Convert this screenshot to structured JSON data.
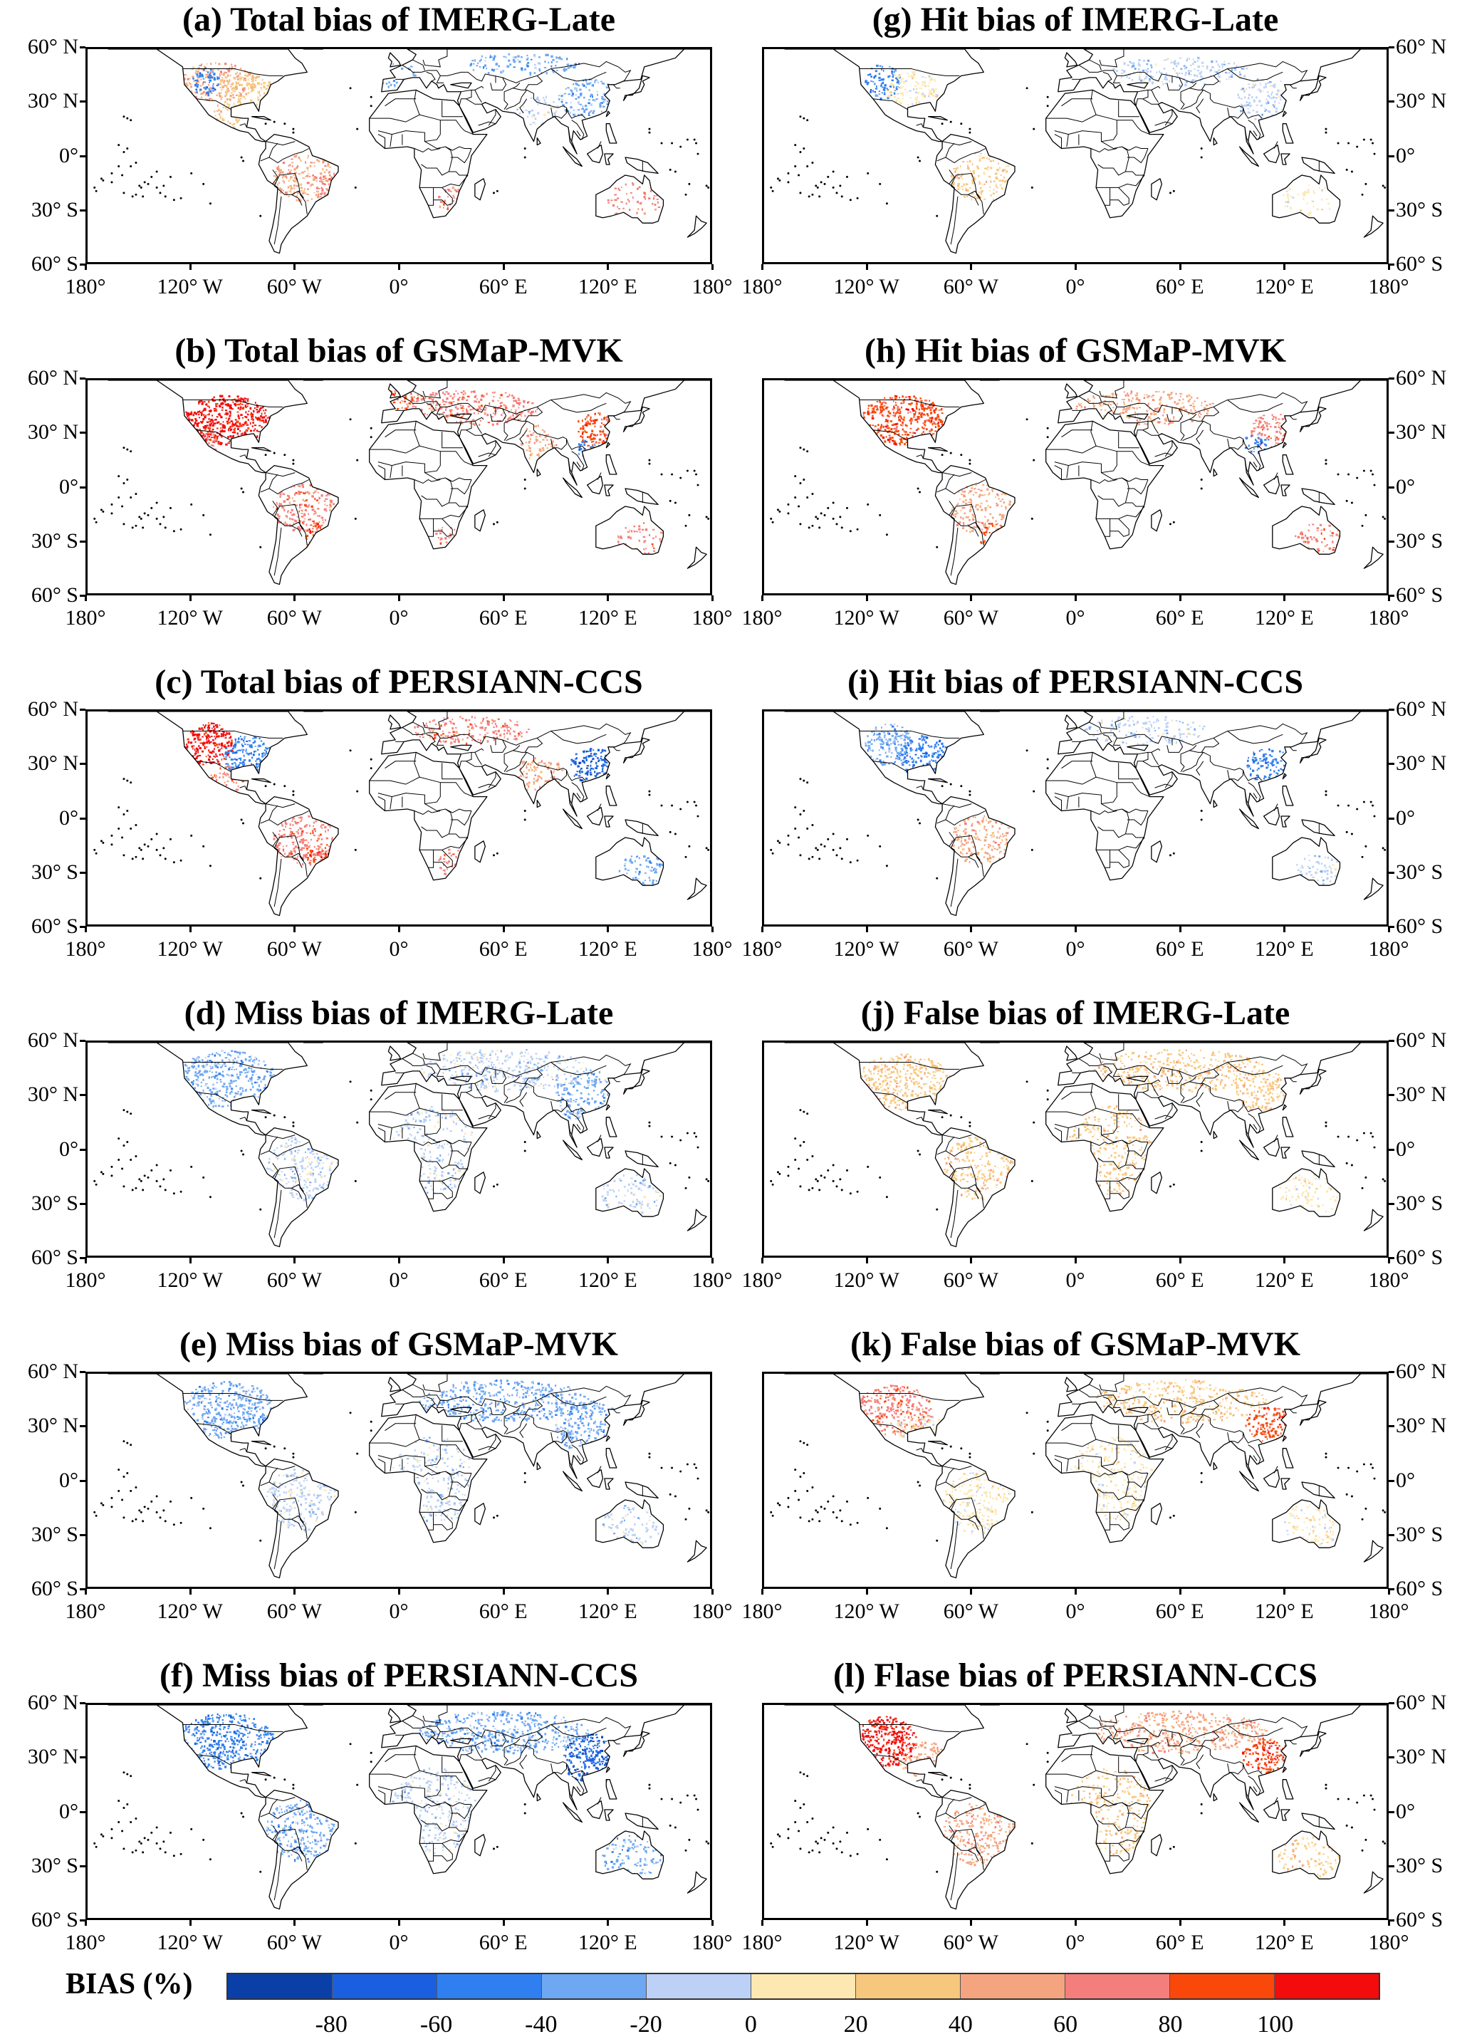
{
  "panels": [
    {
      "id": "a",
      "title": "(a) Total bias of IMERG-Late",
      "side": "left",
      "row": 0,
      "kind": "total",
      "product": "IMERG-Late"
    },
    {
      "id": "b",
      "title": "(b) Total bias of GSMaP-MVK",
      "side": "left",
      "row": 1,
      "kind": "total",
      "product": "GSMaP-MVK"
    },
    {
      "id": "c",
      "title": "(c) Total bias of PERSIANN-CCS",
      "side": "left",
      "row": 2,
      "kind": "total",
      "product": "PERSIANN-CCS"
    },
    {
      "id": "d",
      "title": "(d) Miss bias of IMERG-Late",
      "side": "left",
      "row": 3,
      "kind": "miss",
      "product": "IMERG-Late"
    },
    {
      "id": "e",
      "title": "(e) Miss bias of GSMaP-MVK",
      "side": "left",
      "row": 4,
      "kind": "miss",
      "product": "GSMaP-MVK"
    },
    {
      "id": "f",
      "title": "(f) Miss bias of PERSIANN-CCS",
      "side": "left",
      "row": 5,
      "kind": "miss",
      "product": "PERSIANN-CCS"
    },
    {
      "id": "g",
      "title": "(g) Hit bias of IMERG-Late",
      "side": "right",
      "row": 0,
      "kind": "hit",
      "product": "IMERG-Late"
    },
    {
      "id": "h",
      "title": "(h) Hit bias of GSMaP-MVK",
      "side": "right",
      "row": 1,
      "kind": "hit",
      "product": "GSMaP-MVK"
    },
    {
      "id": "i",
      "title": "(i) Hit bias of PERSIANN-CCS",
      "side": "right",
      "row": 2,
      "kind": "hit",
      "product": "PERSIANN-CCS"
    },
    {
      "id": "j",
      "title": "(j) False bias of IMERG-Late",
      "side": "right",
      "row": 3,
      "kind": "false",
      "product": "IMERG-Late"
    },
    {
      "id": "k",
      "title": "(k) False bias of GSMaP-MVK",
      "side": "right",
      "row": 4,
      "kind": "false",
      "product": "GSMaP-MVK"
    },
    {
      "id": "l",
      "title": "(l) Flase bias of PERSIANN-CCS",
      "side": "right",
      "row": 5,
      "kind": "false",
      "product": "PERSIANN-CCS"
    }
  ],
  "lat_labels": [
    "60° N",
    "30° N",
    "0°",
    "30° S",
    "60° S"
  ],
  "lon_labels": [
    "180°",
    "120° W",
    "60° W",
    "0°",
    "60° E",
    "120° E",
    "180°"
  ],
  "colorbar": {
    "title": "BIAS (%)",
    "colors": [
      "#0a3fa8",
      "#1a5fe0",
      "#2f7ff0",
      "#6fa8f2",
      "#bcd1f5",
      "#fde8b2",
      "#f8c77e",
      "#f4a57f",
      "#f47e7c",
      "#f9480a",
      "#f40b0b"
    ],
    "tick_labels": [
      "-80",
      "-60",
      "-40",
      "-20",
      "0",
      "20",
      "40",
      "60",
      "80",
      "100"
    ]
  }
}
